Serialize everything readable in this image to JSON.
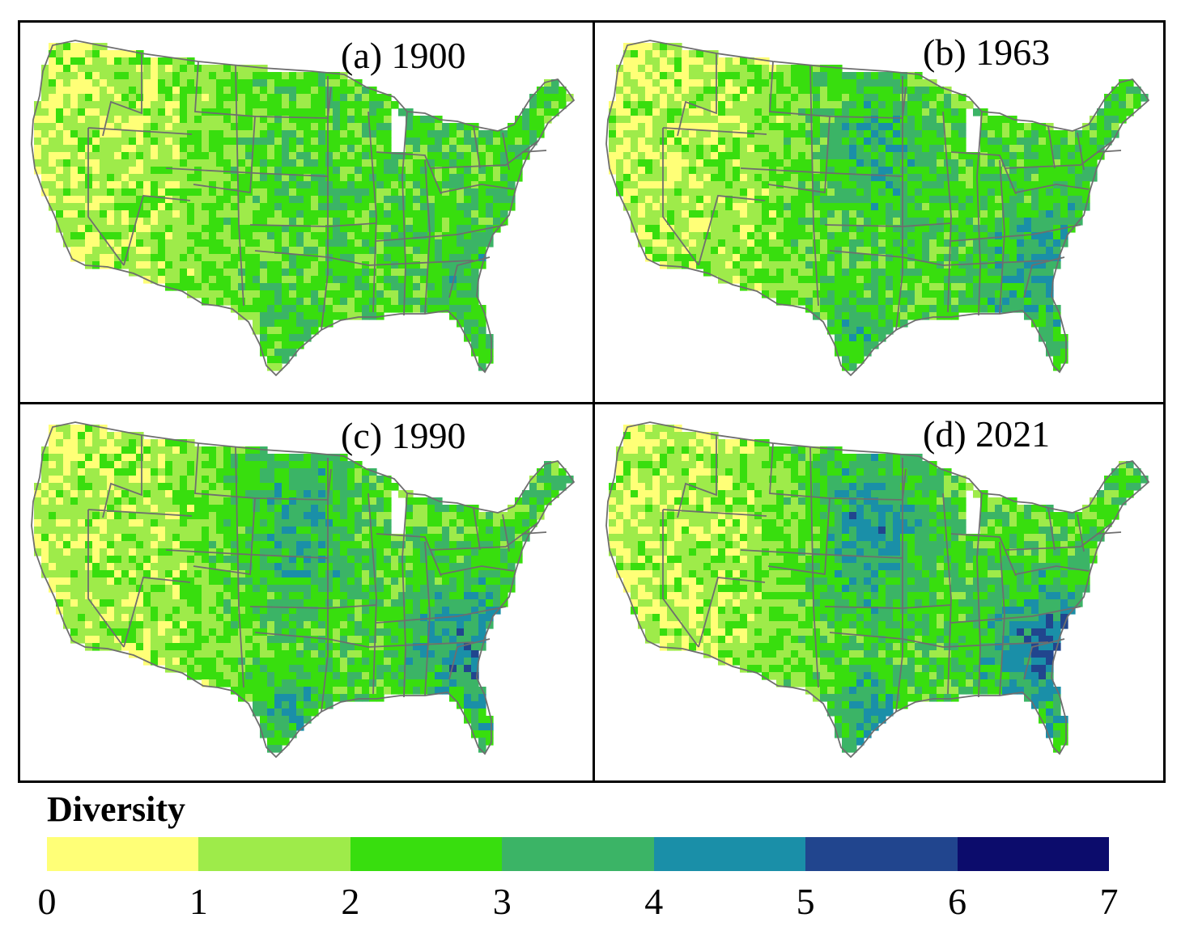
{
  "legend": {
    "title": "Diversity",
    "ticks": [
      "0",
      "1",
      "2",
      "3",
      "4",
      "5",
      "6",
      "7"
    ],
    "classes": [
      {
        "range": [
          0,
          1
        ],
        "color": "#FFFF77"
      },
      {
        "range": [
          1,
          2
        ],
        "color": "#9EEB4A"
      },
      {
        "range": [
          2,
          3
        ],
        "color": "#38DE0E"
      },
      {
        "range": [
          3,
          4
        ],
        "color": "#3BB466"
      },
      {
        "range": [
          4,
          5
        ],
        "color": "#1A8FA8"
      },
      {
        "range": [
          5,
          6
        ],
        "color": "#21458E"
      },
      {
        "range": [
          6,
          7
        ],
        "color": "#0C0C6C"
      }
    ]
  },
  "panels": [
    {
      "label": "(a) 1900",
      "year": 1900
    },
    {
      "label": "(b) 1963",
      "year": 1963
    },
    {
      "label": "(c) 1990",
      "year": 1990
    },
    {
      "label": "(d) 2021",
      "year": 2021
    }
  ],
  "colors": {
    "border": "#000000",
    "state_lines": "#6E6E6E",
    "background": "#FFFFFF"
  }
}
